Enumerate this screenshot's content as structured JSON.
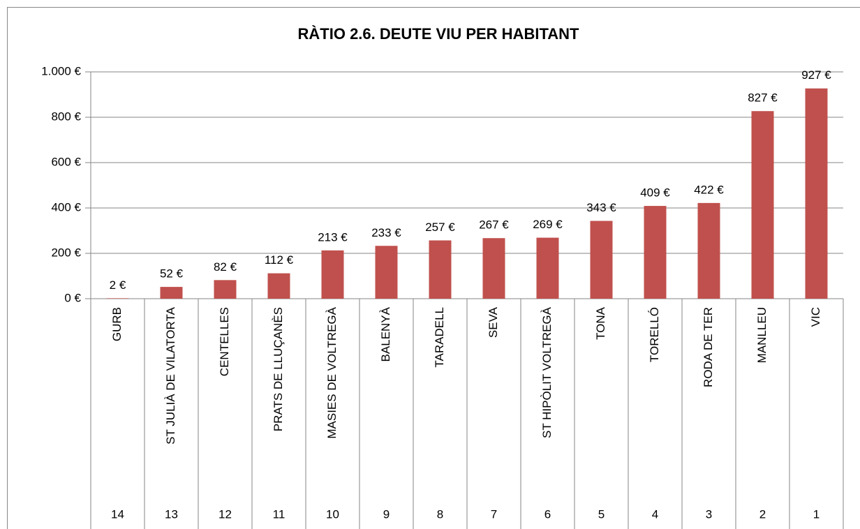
{
  "chart_data": {
    "type": "bar",
    "title": "RÀTIO 2.6. DEUTE VIU PER HABITANT",
    "categories": [
      "GURB",
      "ST JULIÀ DE VILATORTA",
      "CENTELLES",
      "PRATS DE LLUÇANÈS",
      "MASIES DE VOLTREGÀ",
      "BALENYÀ",
      "TARADELL",
      "SEVA",
      "ST HIPÒLIT VOLTREGÀ",
      "TONA",
      "TORELLÓ",
      "RODA DE TER",
      "MANLLEU",
      "VIC"
    ],
    "ranks": [
      14,
      13,
      12,
      11,
      10,
      9,
      8,
      7,
      6,
      5,
      4,
      3,
      2,
      1
    ],
    "values": [
      2,
      52,
      82,
      112,
      213,
      233,
      257,
      267,
      269,
      343,
      409,
      422,
      827,
      927
    ],
    "value_labels": [
      "2 €",
      "52 €",
      "82 €",
      "112 €",
      "213 €",
      "233 €",
      "257 €",
      "267 €",
      "269 €",
      "343 €",
      "409 €",
      "422 €",
      "827 €",
      "927 €"
    ],
    "color": "#c0504d",
    "ylim": [
      0,
      1000
    ],
    "yticks": [
      {
        "value": 0,
        "label": "0 €"
      },
      {
        "value": 200,
        "label": "200 €"
      },
      {
        "value": 400,
        "label": "400 €"
      },
      {
        "value": 600,
        "label": "600 €"
      },
      {
        "value": 800,
        "label": "800 €"
      },
      {
        "value": 1000,
        "label": "1.000 €"
      }
    ],
    "grid": true
  }
}
